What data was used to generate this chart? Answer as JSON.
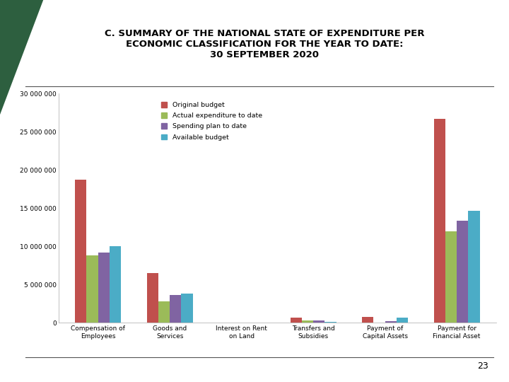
{
  "title_line1": "C. SUMMARY OF THE NATIONAL STATE OF EXPENDITURE PER",
  "title_line2": "ECONOMIC CLASSIFICATION FOR THE YEAR TO DATE:",
  "title_line3": "30 SEPTEMBER 2020",
  "categories": [
    "Compensation of\nEmployees",
    "Goods and\nServices",
    "Interest on Rent\non Land",
    "Transfers and\nSubsidies",
    "Payment of\nCapital Assets",
    "Payment for\nFinancial Asset"
  ],
  "series": {
    "Original budget": [
      18700000,
      6500000,
      0,
      650000,
      750000,
      26700000
    ],
    "Actual expenditure to date": [
      8850000,
      2800000,
      0,
      350000,
      0,
      12000000
    ],
    "Spending plan to date": [
      9200000,
      3600000,
      0,
      350000,
      250000,
      13400000
    ],
    "Available budget": [
      10000000,
      3800000,
      0,
      150000,
      650000,
      14700000
    ]
  },
  "colors": {
    "Original budget": "#c0504d",
    "Actual expenditure to date": "#9bbb59",
    "Spending plan to date": "#8064a2",
    "Available budget": "#4bacc6"
  },
  "ylim": [
    0,
    30000000
  ],
  "yticks": [
    0,
    5000000,
    10000000,
    15000000,
    20000000,
    25000000,
    30000000
  ],
  "ytick_labels": [
    "0",
    "5 000 000",
    "10 000 000",
    "15 000 000",
    "20 000 000",
    "25 000 000",
    "30 000 000"
  ],
  "background_color": "#ffffff",
  "page_number": "23",
  "triangle_color": "#2d5f3f",
  "line_color": "#555555"
}
